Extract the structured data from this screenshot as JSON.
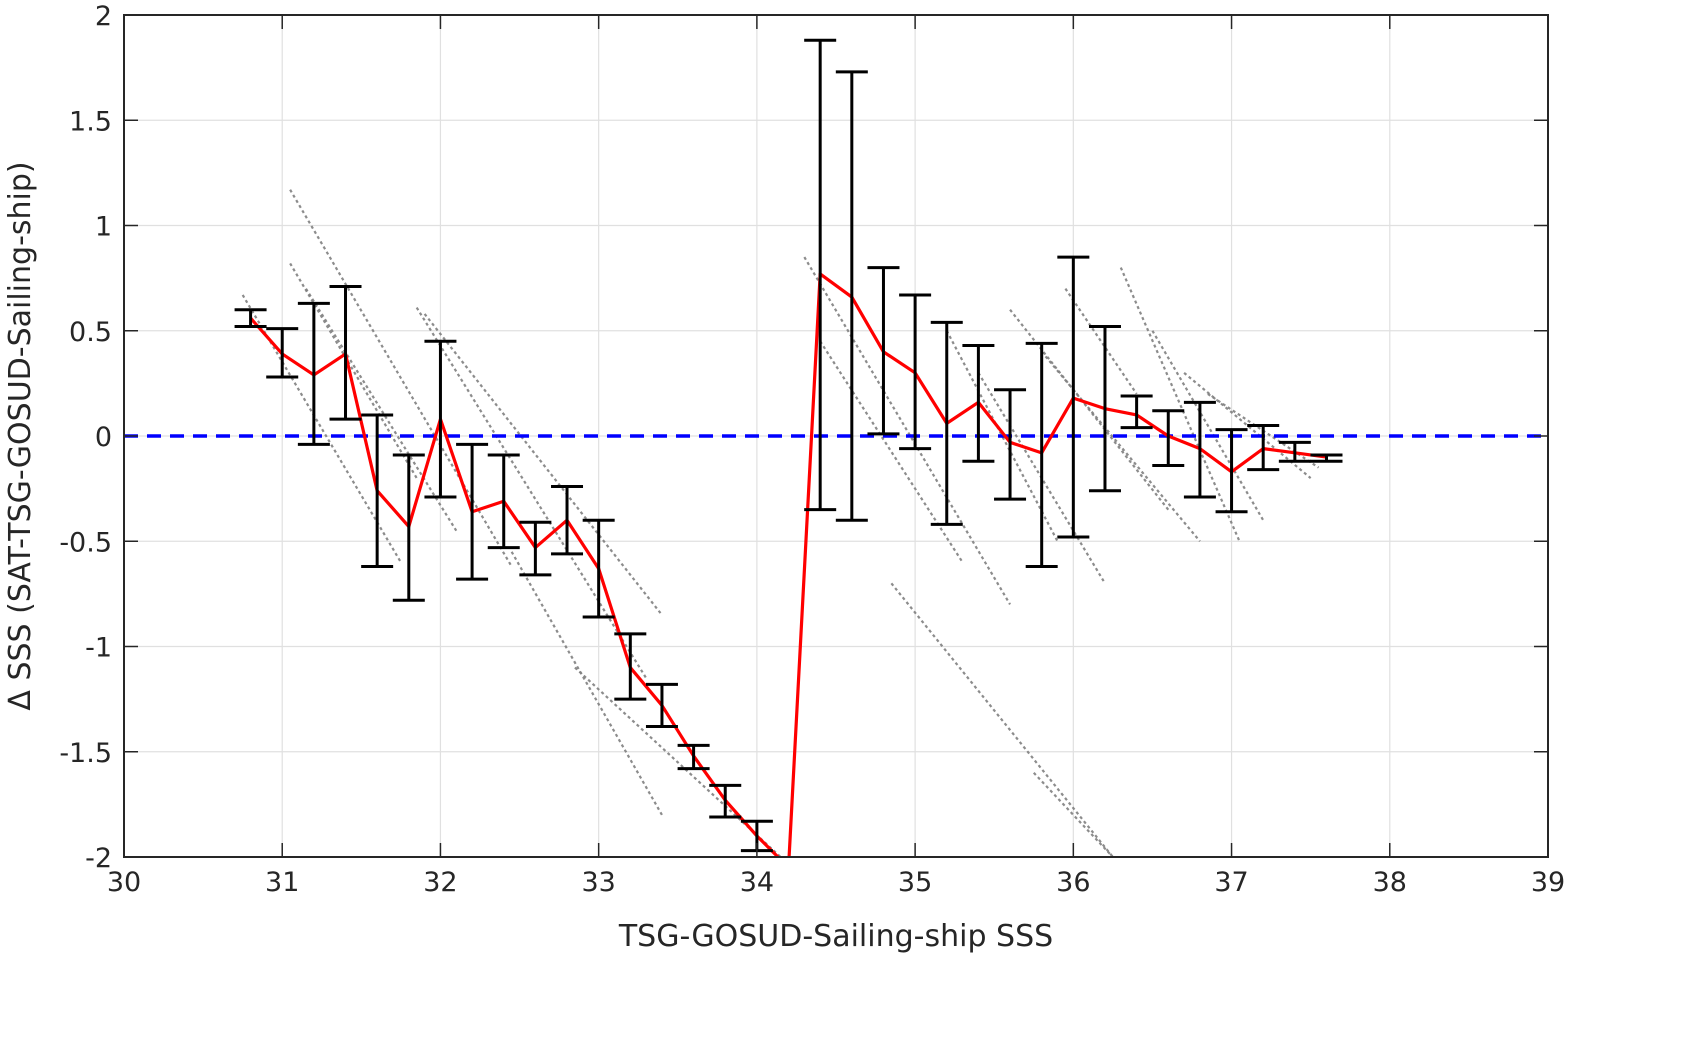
{
  "chart_data": {
    "type": "line",
    "xlabel": "TSG-GOSUD-Sailing-ship SSS",
    "ylabel": "Δ SSS (SAT-TSG-GOSUD-Sailing-ship)",
    "xlim": [
      30,
      39
    ],
    "ylim": [
      -2,
      2
    ],
    "xticks": [
      30,
      31,
      32,
      33,
      34,
      35,
      36,
      37,
      38,
      39
    ],
    "yticks": [
      -2,
      -1.5,
      -1,
      -0.5,
      0,
      0.5,
      1,
      1.5,
      2
    ],
    "ytick_labels": [
      "-2",
      "-1.5",
      "-1",
      "-0.5",
      "0",
      "0.5",
      "1",
      "1.5",
      "2"
    ],
    "grid": true,
    "colors": {
      "mean_line": "#ff0000",
      "zero_line": "#0000ff",
      "error_bars": "#000000",
      "scatter": "#808080",
      "grid": "#e0e0e0",
      "axes": "#262626"
    },
    "zero_line": {
      "y": 0,
      "style": "dashed"
    },
    "binned_mean": {
      "x": [
        30.8,
        31.0,
        31.2,
        31.4,
        31.6,
        31.8,
        32.0,
        32.2,
        32.4,
        32.6,
        32.8,
        33.0,
        33.2,
        33.4,
        33.6,
        33.8,
        34.0,
        34.2,
        34.4,
        34.6,
        34.8,
        35.0,
        35.2,
        35.4,
        35.6,
        35.8,
        36.0,
        36.2,
        36.4,
        36.6,
        36.8,
        37.0,
        37.2,
        37.4,
        37.6
      ],
      "y": [
        0.56,
        0.39,
        0.29,
        0.39,
        -0.26,
        -0.43,
        0.08,
        -0.36,
        -0.31,
        -0.53,
        -0.4,
        -0.63,
        -1.1,
        -1.28,
        -1.52,
        -1.73,
        -1.9,
        -2.05,
        0.77,
        0.66,
        0.4,
        0.3,
        0.06,
        0.16,
        -0.03,
        -0.08,
        0.18,
        0.13,
        0.1,
        0.0,
        -0.06,
        -0.17,
        -0.06,
        -0.08,
        -0.1
      ]
    },
    "error_bars": {
      "x": [
        30.8,
        31.0,
        31.2,
        31.4,
        31.6,
        31.8,
        32.0,
        32.2,
        32.4,
        32.6,
        32.8,
        33.0,
        33.2,
        33.4,
        33.6,
        33.8,
        34.0,
        34.4,
        34.6,
        34.8,
        35.0,
        35.2,
        35.4,
        35.6,
        35.8,
        36.0,
        36.2,
        36.4,
        36.6,
        36.8,
        37.0,
        37.2,
        37.4,
        37.6
      ],
      "lower": [
        0.52,
        0.28,
        -0.04,
        0.08,
        -0.62,
        -0.78,
        -0.29,
        -0.68,
        -0.53,
        -0.66,
        -0.56,
        -0.86,
        -1.25,
        -1.38,
        -1.58,
        -1.81,
        -1.97,
        -0.35,
        -0.4,
        0.01,
        -0.06,
        -0.42,
        -0.12,
        -0.3,
        -0.62,
        -0.48,
        -0.26,
        0.04,
        -0.14,
        -0.29,
        -0.36,
        -0.16,
        -0.12,
        -0.12
      ],
      "upper": [
        0.6,
        0.51,
        0.63,
        0.71,
        0.1,
        -0.09,
        0.45,
        -0.04,
        -0.09,
        -0.41,
        -0.24,
        -0.4,
        -0.94,
        -1.18,
        -1.47,
        -1.66,
        -1.83,
        1.88,
        1.73,
        0.8,
        0.67,
        0.54,
        0.43,
        0.22,
        0.44,
        0.85,
        0.52,
        0.19,
        0.12,
        0.16,
        0.03,
        0.05,
        -0.03,
        -0.09
      ]
    },
    "scatter_tracks": [
      {
        "x": [
          30.75,
          31.75
        ],
        "y": [
          0.67,
          -0.6
        ]
      },
      {
        "x": [
          31.05,
          32.45
        ],
        "y": [
          1.17,
          -0.62
        ]
      },
      {
        "x": [
          31.05,
          31.85
        ],
        "y": [
          0.82,
          -0.2
        ]
      },
      {
        "x": [
          31.15,
          32.1
        ],
        "y": [
          0.7,
          -0.45
        ]
      },
      {
        "x": [
          31.85,
          33.3
        ],
        "y": [
          0.61,
          -1.15
        ]
      },
      {
        "x": [
          31.9,
          33.4
        ],
        "y": [
          0.58,
          -0.85
        ]
      },
      {
        "x": [
          32.45,
          33.4
        ],
        "y": [
          -0.55,
          -1.8
        ]
      },
      {
        "x": [
          32.85,
          34.15
        ],
        "y": [
          -1.1,
          -2.0
        ]
      },
      {
        "x": [
          34.3,
          35.6
        ],
        "y": [
          0.85,
          -0.8
        ]
      },
      {
        "x": [
          34.4,
          35.3
        ],
        "y": [
          0.45,
          -0.6
        ]
      },
      {
        "x": [
          34.85,
          36.25
        ],
        "y": [
          -0.7,
          -2.0
        ]
      },
      {
        "x": [
          35.75,
          36.25
        ],
        "y": [
          -1.6,
          -2.0
        ]
      },
      {
        "x": [
          35.2,
          35.9
        ],
        "y": [
          0.5,
          -0.5
        ]
      },
      {
        "x": [
          35.4,
          36.2
        ],
        "y": [
          0.3,
          -0.7
        ]
      },
      {
        "x": [
          35.6,
          36.6
        ],
        "y": [
          0.6,
          -0.35
        ]
      },
      {
        "x": [
          35.8,
          36.8
        ],
        "y": [
          0.4,
          -0.5
        ]
      },
      {
        "x": [
          35.95,
          36.4
        ],
        "y": [
          0.7,
          0.2
        ]
      },
      {
        "x": [
          36.3,
          37.05
        ],
        "y": [
          0.8,
          -0.5
        ]
      },
      {
        "x": [
          36.5,
          37.2
        ],
        "y": [
          0.5,
          -0.4
        ]
      },
      {
        "x": [
          36.7,
          37.5
        ],
        "y": [
          0.3,
          -0.2
        ]
      },
      {
        "x": [
          36.85,
          37.55
        ],
        "y": [
          0.2,
          -0.15
        ]
      }
    ]
  }
}
